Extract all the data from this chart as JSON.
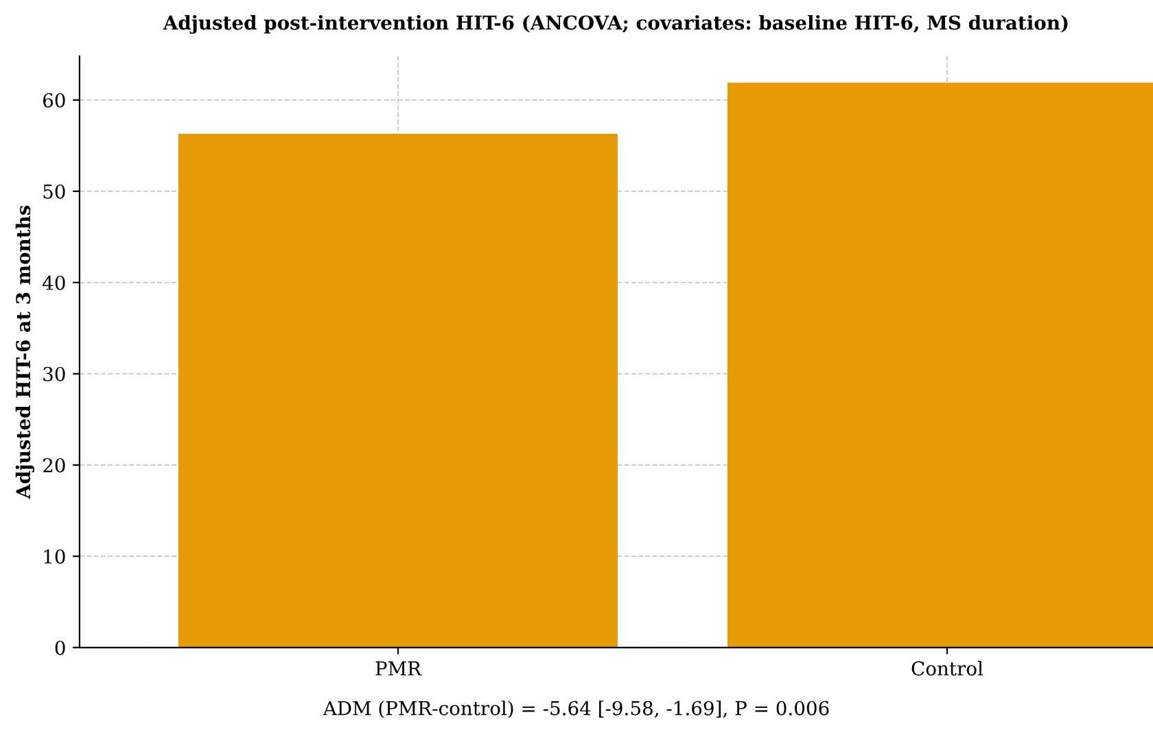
{
  "chart_data": {
    "type": "bar",
    "title": "Adjusted post-intervention HIT-6 (ANCOVA; covariates: baseline HIT-6, MS duration)",
    "ylabel": "Adjusted HIT-6 at 3 months",
    "categories": [
      "PMR",
      "Control"
    ],
    "values": [
      56.3,
      61.9
    ],
    "color": "#e69a06",
    "ylim": [
      0,
      64.8
    ],
    "yticks": [
      0,
      10,
      20,
      30,
      40,
      50,
      60
    ],
    "grid": true,
    "annotations": [
      "ADM (PMR-control) = -5.64 [-9.58, -1.69], P = 0.006"
    ]
  }
}
